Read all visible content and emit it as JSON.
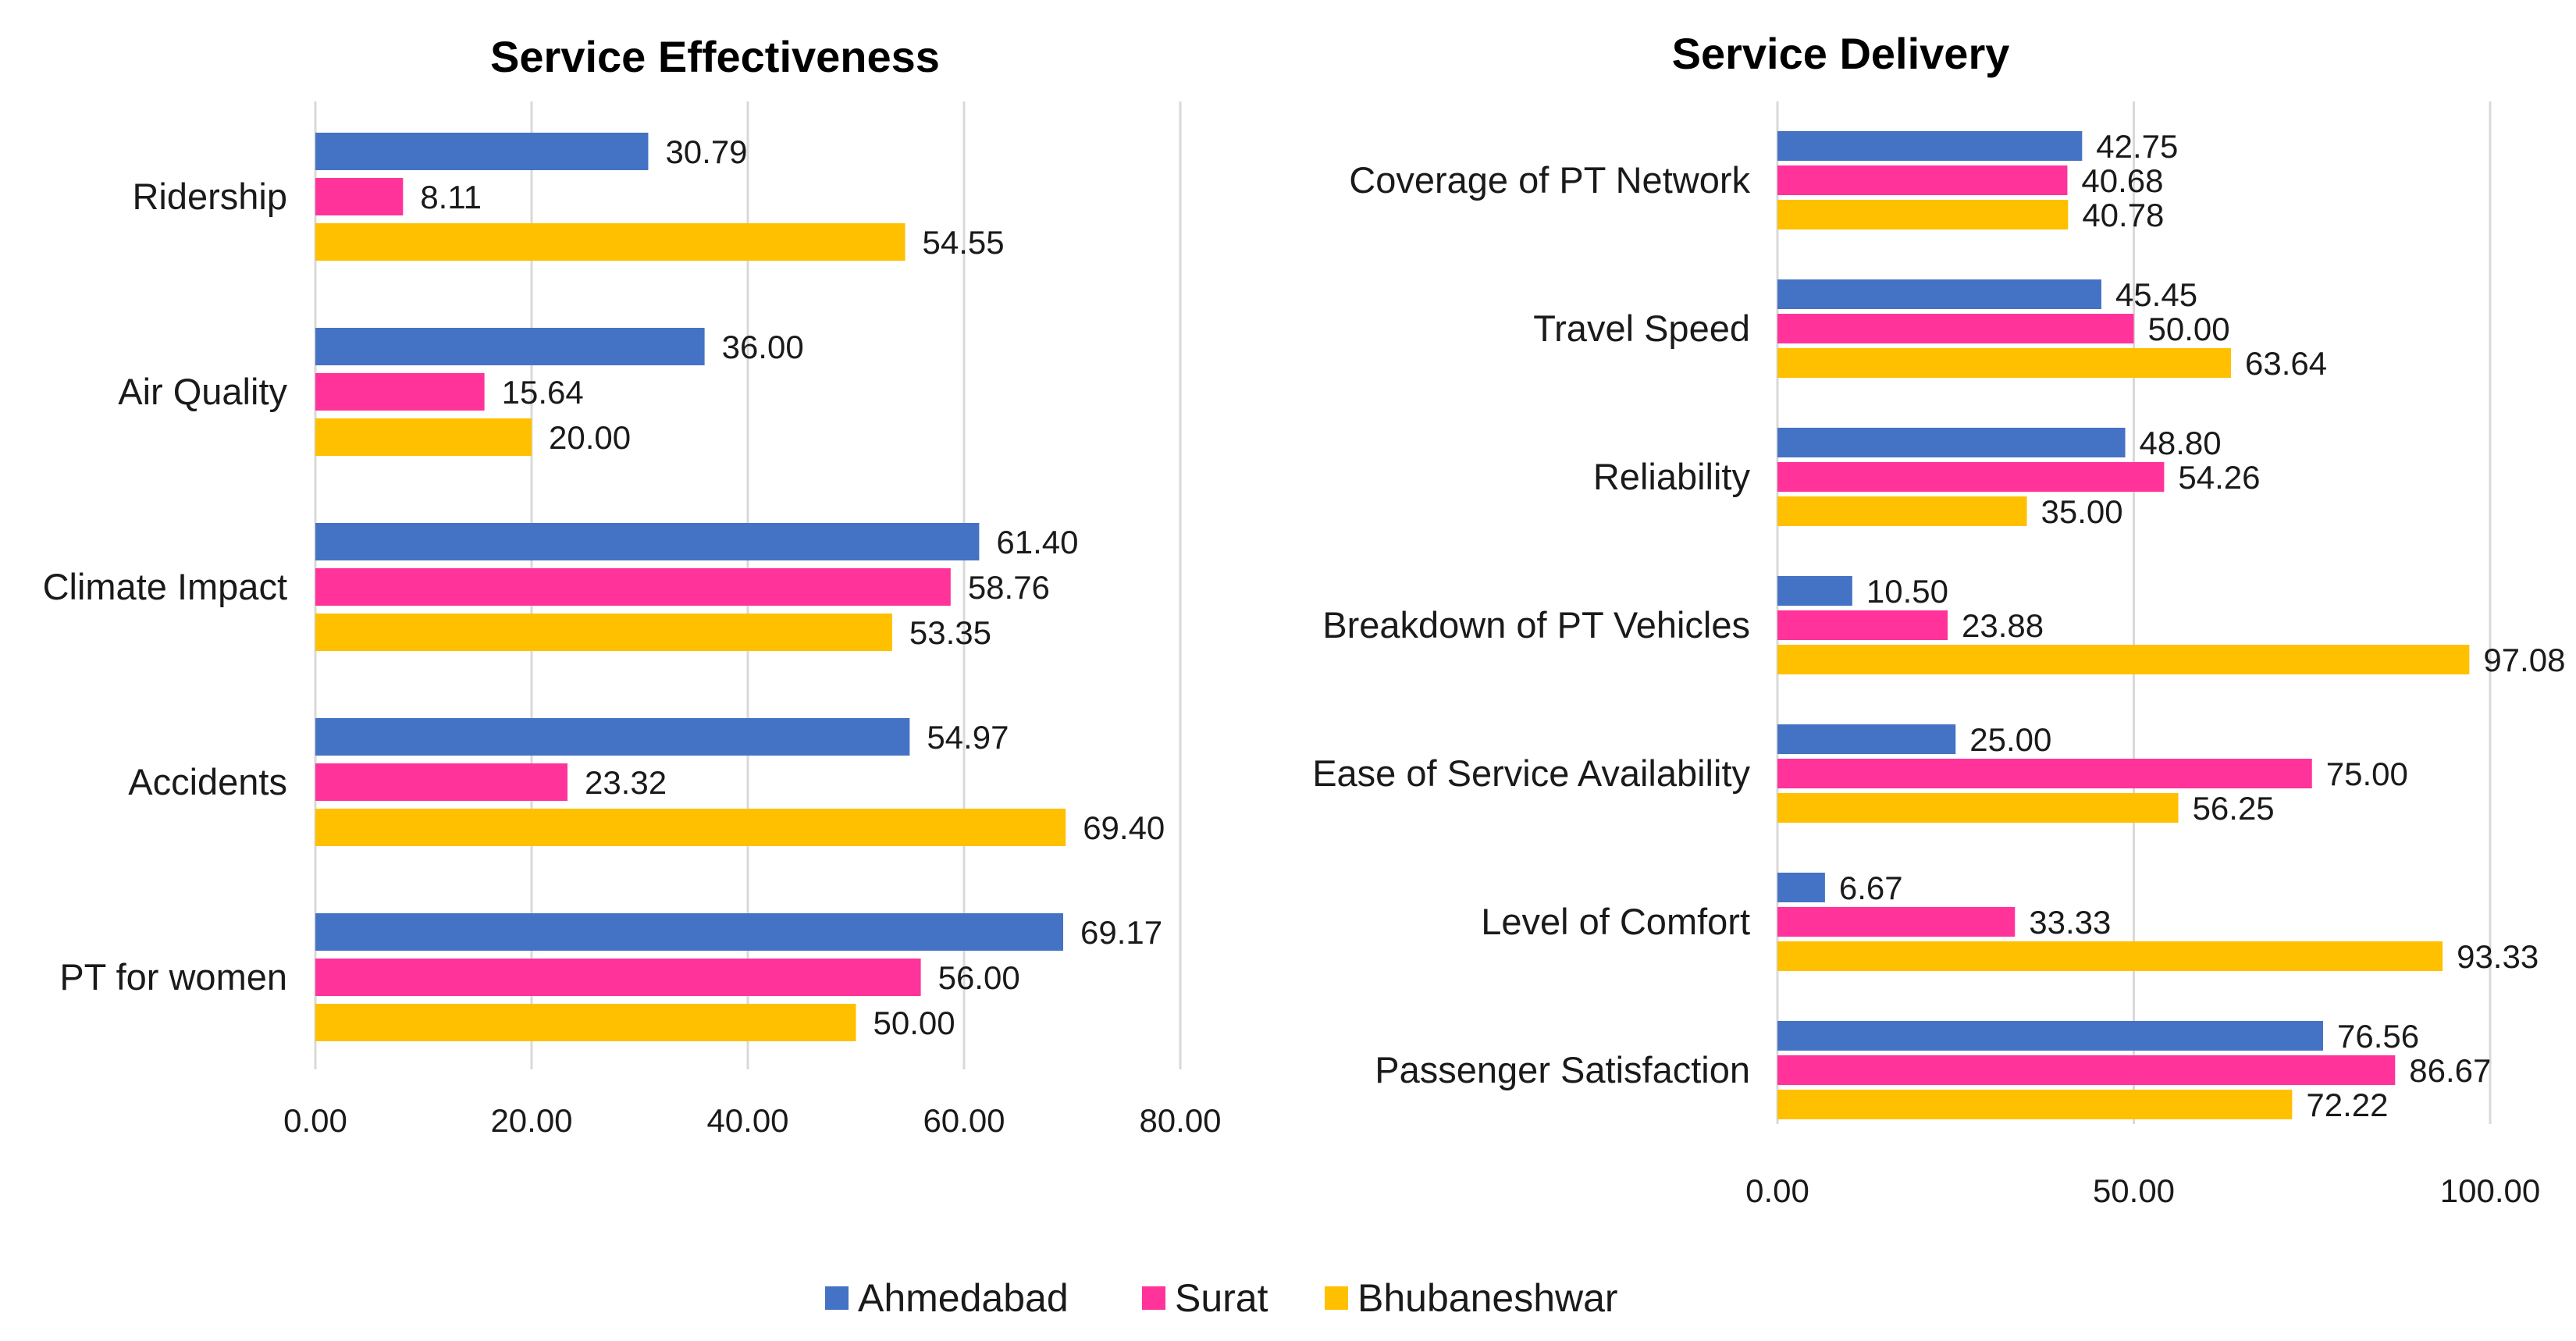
{
  "chart_data": [
    {
      "type": "bar",
      "orientation": "horizontal",
      "title": "Service Effectiveness",
      "categories": [
        "Ridership",
        "Air Quality",
        "Climate Impact",
        "Accidents",
        "PT for women"
      ],
      "series": [
        {
          "name": "Ahmedabad",
          "values": [
            30.79,
            36.0,
            61.4,
            54.97,
            69.17
          ],
          "labels": [
            "30.79",
            "36.00",
            "61.40",
            "54.97",
            "69.17"
          ]
        },
        {
          "name": "Surat",
          "values": [
            8.11,
            15.64,
            58.76,
            23.32,
            56.0
          ],
          "labels": [
            "8.11",
            "15.64",
            "58.76",
            "23.32",
            "56.00"
          ]
        },
        {
          "name": "Bhubaneshwar",
          "values": [
            54.55,
            20.0,
            53.35,
            69.4,
            50.0
          ],
          "labels": [
            "54.55",
            "20.00",
            "53.35",
            "69.40",
            "50.00"
          ]
        }
      ],
      "xlim": [
        0,
        80
      ],
      "xticks": [
        0,
        20,
        40,
        60,
        80
      ],
      "xtick_labels": [
        "0.00",
        "20.00",
        "40.00",
        "60.00",
        "80.00"
      ],
      "grid": true
    },
    {
      "type": "bar",
      "orientation": "horizontal",
      "title": "Service Delivery",
      "categories": [
        "Coverage of PT Network",
        "Travel Speed",
        "Reliability",
        "Breakdown of PT Vehicles",
        "Ease of Service Availability",
        "Level of Comfort",
        "Passenger Satisfaction"
      ],
      "series": [
        {
          "name": "Ahmedabad",
          "values": [
            42.75,
            45.45,
            48.8,
            10.5,
            25.0,
            6.67,
            76.56
          ],
          "labels": [
            "42.75",
            "45.45",
            "48.80",
            "10.50",
            "25.00",
            "6.67",
            "76.56"
          ]
        },
        {
          "name": "Surat",
          "values": [
            40.68,
            50.0,
            54.26,
            23.88,
            75.0,
            33.33,
            86.67
          ],
          "labels": [
            "40.68",
            "50.00",
            "54.26",
            "23.88",
            "75.00",
            "33.33",
            "86.67"
          ]
        },
        {
          "name": "Bhubaneshwar",
          "values": [
            40.78,
            63.64,
            35.0,
            97.08,
            56.25,
            93.33,
            72.22
          ],
          "labels": [
            "40.78",
            "63.64",
            "35.00",
            "97.08",
            "56.25",
            "93.33",
            "72.22"
          ]
        }
      ],
      "xlim": [
        0,
        100
      ],
      "xticks": [
        0,
        50,
        100
      ],
      "xtick_labels": [
        "0.00",
        "50.00",
        "100.00"
      ],
      "grid": true
    }
  ],
  "legend": {
    "placement": "bottom-center",
    "items": [
      {
        "name": "Ahmedabad",
        "color": "#4472C4"
      },
      {
        "name": "Surat",
        "color": "#FF3399"
      },
      {
        "name": "Bhubaneshwar",
        "color": "#FFC000"
      }
    ]
  },
  "colors": {
    "Ahmedabad": "#4472C4",
    "Surat": "#FF3399",
    "Bhubaneshwar": "#FFC000"
  }
}
